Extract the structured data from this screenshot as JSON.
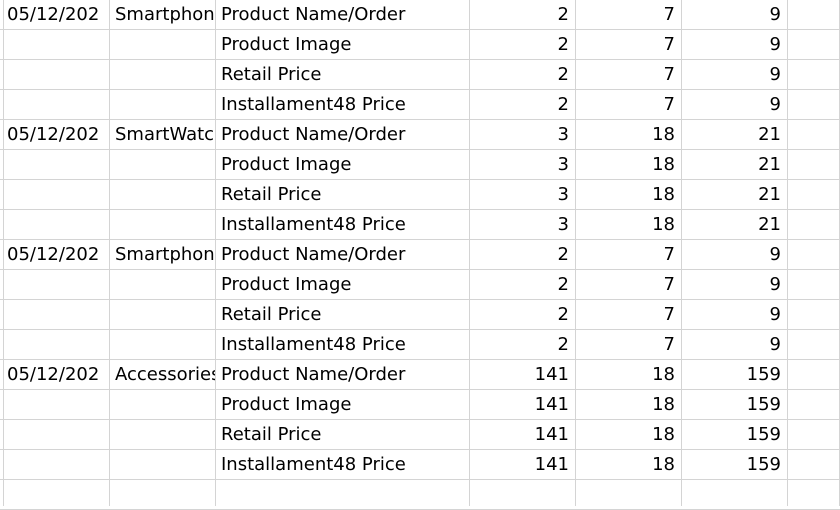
{
  "sheet": {
    "rows": [
      {
        "date": "05/12/202",
        "category": "Smartphon",
        "field": "Product Name/Order",
        "v1": "2",
        "v2": "7",
        "v3": "9"
      },
      {
        "date": "",
        "category": "",
        "field": "Product Image",
        "v1": "2",
        "v2": "7",
        "v3": "9"
      },
      {
        "date": "",
        "category": "",
        "field": "Retail Price",
        "v1": "2",
        "v2": "7",
        "v3": "9"
      },
      {
        "date": "",
        "category": "",
        "field": "Installament48 Price",
        "v1": "2",
        "v2": "7",
        "v3": "9"
      },
      {
        "date": "05/12/202",
        "category": "SmartWatc",
        "field": "Product Name/Order",
        "v1": "3",
        "v2": "18",
        "v3": "21"
      },
      {
        "date": "",
        "category": "",
        "field": "Product Image",
        "v1": "3",
        "v2": "18",
        "v3": "21"
      },
      {
        "date": "",
        "category": "",
        "field": "Retail Price",
        "v1": "3",
        "v2": "18",
        "v3": "21"
      },
      {
        "date": "",
        "category": "",
        "field": "Installament48 Price",
        "v1": "3",
        "v2": "18",
        "v3": "21"
      },
      {
        "date": "05/12/202",
        "category": "Smartphon",
        "field": "Product Name/Order",
        "v1": "2",
        "v2": "7",
        "v3": "9"
      },
      {
        "date": "",
        "category": "",
        "field": "Product Image",
        "v1": "2",
        "v2": "7",
        "v3": "9"
      },
      {
        "date": "",
        "category": "",
        "field": "Retail Price",
        "v1": "2",
        "v2": "7",
        "v3": "9"
      },
      {
        "date": "",
        "category": "",
        "field": "Installament48 Price",
        "v1": "2",
        "v2": "7",
        "v3": "9"
      },
      {
        "date": "05/12/202",
        "category": "Accessories",
        "field": "Product Name/Order",
        "v1": "141",
        "v2": "18",
        "v3": "159"
      },
      {
        "date": "",
        "category": "",
        "field": "Product Image",
        "v1": "141",
        "v2": "18",
        "v3": "159"
      },
      {
        "date": "",
        "category": "",
        "field": "Retail Price",
        "v1": "141",
        "v2": "18",
        "v3": "159"
      },
      {
        "date": "",
        "category": "",
        "field": "Installament48 Price",
        "v1": "141",
        "v2": "18",
        "v3": "159"
      },
      {
        "date": "",
        "category": "",
        "field": "",
        "v1": "",
        "v2": "",
        "v3": ""
      }
    ]
  },
  "colors": {
    "gridline": "#d4d4d4",
    "background": "#ffffff",
    "text": "#000000"
  }
}
